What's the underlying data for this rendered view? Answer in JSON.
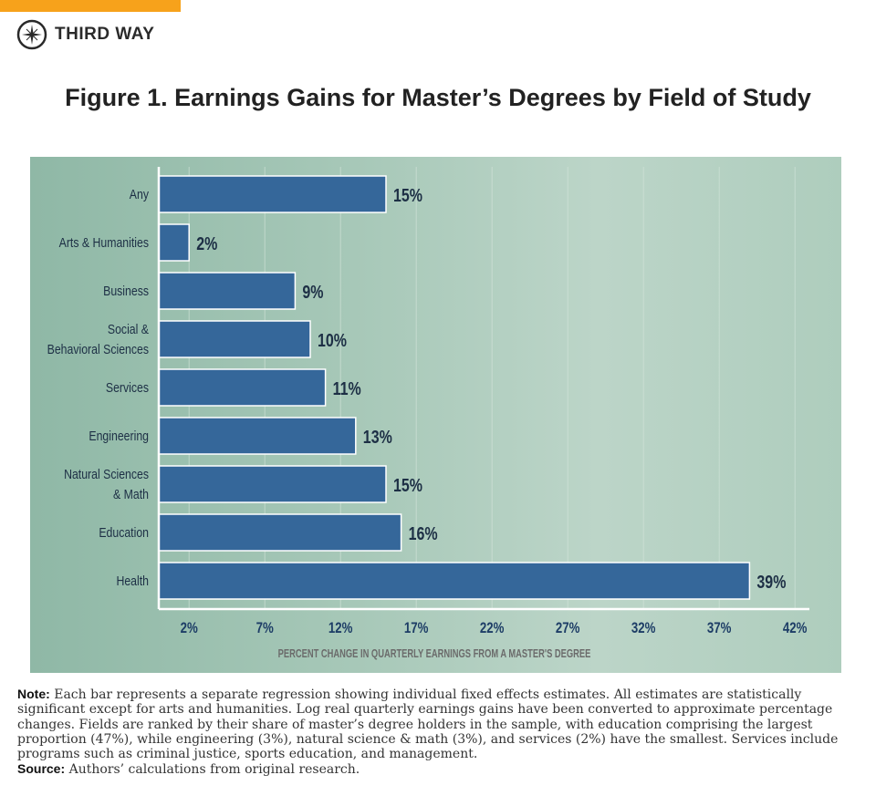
{
  "brand": {
    "name": "THIRD WAY",
    "accent": "#f7a21b"
  },
  "chart_data": {
    "type": "bar",
    "orientation": "horizontal",
    "title": "Figure 1. Earnings Gains for Master’s Degrees by Field of Study",
    "categories": [
      "Any",
      "Arts & Humanities",
      "Business",
      "Social & Behavioral Sciences",
      "Services",
      "Engineering",
      "Natural Sciences & Math",
      "Education",
      "Health"
    ],
    "category_lines": [
      [
        "Any"
      ],
      [
        "Arts & Humanities"
      ],
      [
        "Business"
      ],
      [
        "Social &",
        "Behavioral Sciences"
      ],
      [
        "Services"
      ],
      [
        "Engineering"
      ],
      [
        "Natural Sciences",
        "& Math"
      ],
      [
        "Education"
      ],
      [
        "Health"
      ]
    ],
    "values": [
      15,
      2,
      9,
      10,
      11,
      13,
      15,
      16,
      39
    ],
    "data_labels": [
      "15%",
      "2%",
      "9%",
      "10%",
      "11%",
      "13%",
      "15%",
      "16%",
      "39%"
    ],
    "xlabel": "PERCENT CHANGE IN QUARTERLY EARNINGS FROM A MASTER'S DEGREE",
    "ylabel": "",
    "xticks": [
      2,
      7,
      12,
      17,
      22,
      27,
      32,
      37,
      42
    ],
    "xtick_labels": [
      "2%",
      "7%",
      "12%",
      "17%",
      "22%",
      "27%",
      "32%",
      "37%",
      "42%"
    ],
    "xlim": [
      0,
      42.5
    ],
    "grid": true,
    "bar_color": "#35679a"
  },
  "note": {
    "label": "Note:",
    "text": "Each bar represents a separate regression showing individual fixed effects estimates. All estimates are statistically significant except for arts and humanities. Log real quarterly earnings gains have been converted to approximate percentage changes. Fields are ranked by their share of master’s degree holders in the sample, with education comprising the largest proportion (47%), while engineering (3%), natural science & math (3%), and services (2%) have the smallest. Services include programs such as criminal justice, sports education, and management.",
    "source_label": "Source:",
    "source_text": "Authors’ calculations from original research."
  }
}
